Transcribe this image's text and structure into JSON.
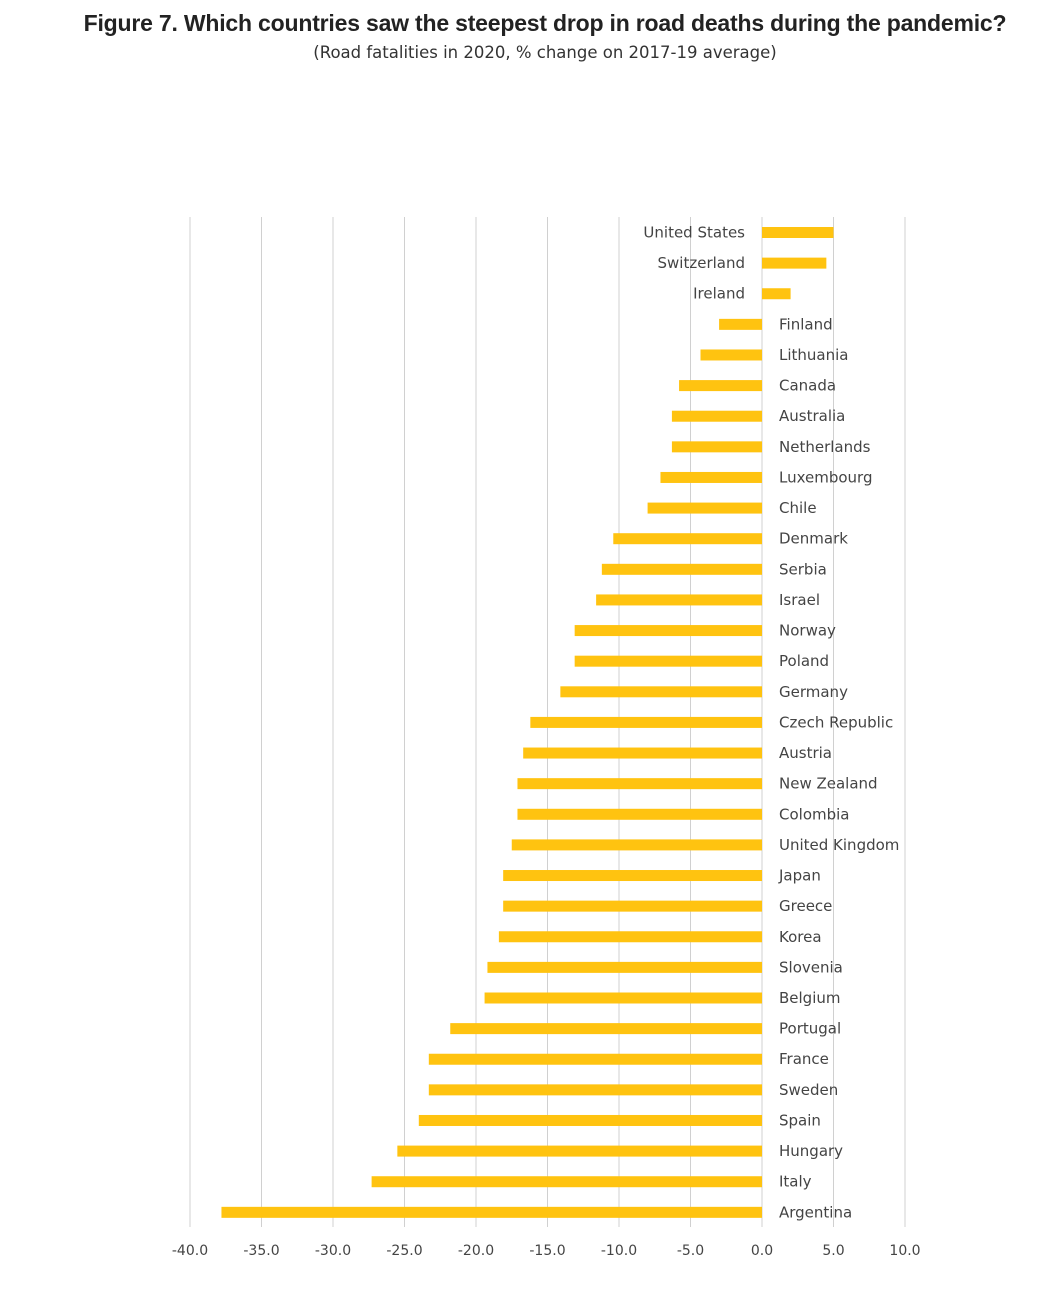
{
  "title": "Figure 7. Which countries saw the steepest drop in road deaths during the pandemic?",
  "subtitle": "(Road fatalities in 2020, % change on 2017-19 average)",
  "colors": {
    "bar": "#FFC310",
    "grid": "#d0d0d0",
    "text": "#444444"
  },
  "chart_data": {
    "type": "bar",
    "orientation": "horizontal",
    "title": "Figure 7. Which countries saw the steepest drop in road deaths during the pandemic?",
    "subtitle": "(Road fatalities in 2020, % change on 2017-19 average)",
    "xlabel": "",
    "ylabel": "",
    "xlim": [
      -40,
      10
    ],
    "x_ticks": [
      "-40.0",
      "-35.0",
      "-30.0",
      "-25.0",
      "-20.0",
      "-15.0",
      "-10.0",
      "-5.0",
      "0.0",
      "5.0",
      "10.0"
    ],
    "grid": true,
    "categories": [
      "United States",
      "Switzerland",
      "Ireland",
      "Finland",
      "Lithuania",
      "Canada",
      "Australia",
      "Netherlands",
      "Luxembourg",
      "Chile",
      "Denmark",
      "Serbia",
      "Israel",
      "Norway",
      "Poland",
      "Germany",
      "Czech Republic",
      "Austria",
      "New Zealand",
      "Colombia",
      "United Kingdom",
      "Japan",
      "Greece",
      "Korea",
      "Slovenia",
      "Belgium",
      "Portugal",
      "France",
      "Sweden",
      "Spain",
      "Hungary",
      "Italy",
      "Argentina"
    ],
    "values": [
      5.0,
      4.5,
      2.0,
      -3.0,
      -4.3,
      -5.8,
      -6.3,
      -6.3,
      -7.1,
      -8.0,
      -10.4,
      -11.2,
      -11.6,
      -13.1,
      -13.1,
      -14.1,
      -16.2,
      -16.7,
      -17.1,
      -17.1,
      -17.5,
      -18.1,
      -18.1,
      -18.4,
      -19.2,
      -19.4,
      -21.8,
      -23.3,
      -23.3,
      -24.0,
      -25.5,
      -27.3,
      -37.8
    ]
  }
}
